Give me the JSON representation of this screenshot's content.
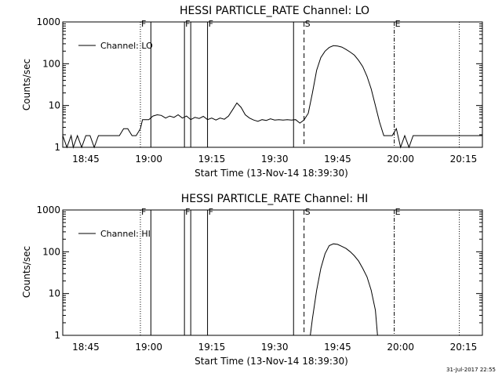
{
  "footer_stamp": "31-Jul-2017 22:55",
  "chart_data": [
    {
      "type": "line",
      "title": "HESSI PARTICLE_RATE Channel: LO",
      "xlabel": "Start Time (13-Nov-14 18:39:30)",
      "ylabel": "Counts/sec",
      "y_scale": "log",
      "ylim": [
        1,
        1000
      ],
      "xlim_minutes": [
        0,
        100
      ],
      "x_ticks": [
        "18:45",
        "19:00",
        "19:15",
        "19:30",
        "19:45",
        "20:00",
        "20:15"
      ],
      "y_ticks": [
        "1",
        "10",
        "100",
        "1000"
      ],
      "legend": {
        "entries": [
          "Channel: LO"
        ],
        "placement": "top-left"
      },
      "markers": [
        {
          "label": "F",
          "time": "18:58:00",
          "style": "dotted"
        },
        {
          "label": "",
          "time": "19:00:30",
          "style": "solid"
        },
        {
          "label": "F",
          "time": "19:08:30",
          "style": "solid"
        },
        {
          "label": "",
          "time": "19:10:00",
          "style": "solid"
        },
        {
          "label": "F",
          "time": "19:14:00",
          "style": "solid"
        },
        {
          "label": "",
          "time": "19:34:30",
          "style": "solid"
        },
        {
          "label": "S",
          "time": "19:37:00",
          "style": "dashed"
        },
        {
          "label": "E",
          "time": "19:58:30",
          "style": "dashdot"
        },
        {
          "label": "",
          "time": "20:14:00",
          "style": "dotted"
        }
      ],
      "series": [
        {
          "name": "Channel: LO",
          "points": [
            [
              "18:39:30",
              1.9
            ],
            [
              "18:40:30",
              1.0
            ],
            [
              "18:41:30",
              1.9
            ],
            [
              "18:42:00",
              1.0
            ],
            [
              "18:43:00",
              1.9
            ],
            [
              "18:44:00",
              1.0
            ],
            [
              "18:45:00",
              1.9
            ],
            [
              "18:46:00",
              1.9
            ],
            [
              "18:47:00",
              1.0
            ],
            [
              "18:48:00",
              1.9
            ],
            [
              "18:49:00",
              1.9
            ],
            [
              "18:50:00",
              1.9
            ],
            [
              "18:51:00",
              1.9
            ],
            [
              "18:52:00",
              1.9
            ],
            [
              "18:53:00",
              1.9
            ],
            [
              "18:54:00",
              2.8
            ],
            [
              "18:55:00",
              2.8
            ],
            [
              "18:56:00",
              1.9
            ],
            [
              "18:57:00",
              1.9
            ],
            [
              "18:58:00",
              2.8
            ],
            [
              "18:58:30",
              4.6
            ],
            [
              "19:00:00",
              4.6
            ],
            [
              "19:01:00",
              5.6
            ],
            [
              "19:02:00",
              6.0
            ],
            [
              "19:03:00",
              5.8
            ],
            [
              "19:04:00",
              5.0
            ],
            [
              "19:05:00",
              5.6
            ],
            [
              "19:06:00",
              5.2
            ],
            [
              "19:07:00",
              6.0
            ],
            [
              "19:08:00",
              5.0
            ],
            [
              "19:09:00",
              5.6
            ],
            [
              "19:10:00",
              4.6
            ],
            [
              "19:11:00",
              5.2
            ],
            [
              "19:12:00",
              4.9
            ],
            [
              "19:13:00",
              5.5
            ],
            [
              "19:14:00",
              4.6
            ],
            [
              "19:15:00",
              5.0
            ],
            [
              "19:16:00",
              4.5
            ],
            [
              "19:17:00",
              5.0
            ],
            [
              "19:18:00",
              4.7
            ],
            [
              "19:19:00",
              5.6
            ],
            [
              "19:20:00",
              8.0
            ],
            [
              "19:21:00",
              11.5
            ],
            [
              "19:22:00",
              9.0
            ],
            [
              "19:23:00",
              6.0
            ],
            [
              "19:24:00",
              5.0
            ],
            [
              "19:25:00",
              4.5
            ],
            [
              "19:26:00",
              4.2
            ],
            [
              "19:27:00",
              4.6
            ],
            [
              "19:28:00",
              4.4
            ],
            [
              "19:29:00",
              4.8
            ],
            [
              "19:30:00",
              4.5
            ],
            [
              "19:31:00",
              4.6
            ],
            [
              "19:32:00",
              4.5
            ],
            [
              "19:33:00",
              4.6
            ],
            [
              "19:34:00",
              4.5
            ],
            [
              "19:35:00",
              4.6
            ],
            [
              "19:36:00",
              3.8
            ],
            [
              "19:37:00",
              4.5
            ],
            [
              "19:38:00",
              6.5
            ],
            [
              "19:39:00",
              20.0
            ],
            [
              "19:40:00",
              70.0
            ],
            [
              "19:41:00",
              140.0
            ],
            [
              "19:42:00",
              200.0
            ],
            [
              "19:43:00",
              245.0
            ],
            [
              "19:44:00",
              270.0
            ],
            [
              "19:45:00",
              265.0
            ],
            [
              "19:46:00",
              250.0
            ],
            [
              "19:47:00",
              220.0
            ],
            [
              "19:48:00",
              190.0
            ],
            [
              "19:49:00",
              160.0
            ],
            [
              "19:50:00",
              120.0
            ],
            [
              "19:51:00",
              85.0
            ],
            [
              "19:52:00",
              50.0
            ],
            [
              "19:53:00",
              25.0
            ],
            [
              "19:54:00",
              10.0
            ],
            [
              "19:55:00",
              4.0
            ],
            [
              "19:56:00",
              1.9
            ],
            [
              "19:57:00",
              1.9
            ],
            [
              "19:58:00",
              1.9
            ],
            [
              "19:59:00",
              2.8
            ],
            [
              "20:00:00",
              1.0
            ],
            [
              "20:01:00",
              1.9
            ],
            [
              "20:02:00",
              1.0
            ],
            [
              "20:03:00",
              1.9
            ],
            [
              "20:04:00",
              1.9
            ],
            [
              "20:05:00",
              1.9
            ],
            [
              "20:06:00",
              1.9
            ],
            [
              "20:07:00",
              1.9
            ],
            [
              "20:08:00",
              1.9
            ],
            [
              "20:10:00",
              1.9
            ],
            [
              "20:12:00",
              1.9
            ],
            [
              "20:14:00",
              1.9
            ],
            [
              "20:16:00",
              1.9
            ],
            [
              "20:19:30",
              1.9
            ]
          ]
        }
      ]
    },
    {
      "type": "line",
      "title": "HESSI PARTICLE_RATE Channel: HI",
      "xlabel": "Start Time (13-Nov-14 18:39:30)",
      "ylabel": "Counts/sec",
      "y_scale": "log",
      "ylim": [
        1,
        1000
      ],
      "xlim_minutes": [
        0,
        100
      ],
      "x_ticks": [
        "18:45",
        "19:00",
        "19:15",
        "19:30",
        "19:45",
        "20:00",
        "20:15"
      ],
      "y_ticks": [
        "1",
        "10",
        "100",
        "1000"
      ],
      "legend": {
        "entries": [
          "Channel: HI"
        ],
        "placement": "top-left"
      },
      "markers": [
        {
          "label": "F",
          "time": "18:58:00",
          "style": "dotted"
        },
        {
          "label": "",
          "time": "19:00:30",
          "style": "solid"
        },
        {
          "label": "F",
          "time": "19:08:30",
          "style": "solid"
        },
        {
          "label": "",
          "time": "19:10:00",
          "style": "solid"
        },
        {
          "label": "F",
          "time": "19:14:00",
          "style": "solid"
        },
        {
          "label": "",
          "time": "19:34:30",
          "style": "solid"
        },
        {
          "label": "S",
          "time": "19:37:00",
          "style": "dashed"
        },
        {
          "label": "E",
          "time": "19:58:30",
          "style": "dashdot"
        },
        {
          "label": "",
          "time": "20:14:00",
          "style": "dotted"
        }
      ],
      "series": [
        {
          "name": "Channel: HI",
          "points": [
            [
              "19:38:30",
              1.0
            ],
            [
              "19:39:00",
              2.5
            ],
            [
              "19:40:00",
              12.0
            ],
            [
              "19:41:00",
              40.0
            ],
            [
              "19:42:00",
              90.0
            ],
            [
              "19:43:00",
              140.0
            ],
            [
              "19:44:00",
              155.0
            ],
            [
              "19:45:00",
              150.0
            ],
            [
              "19:46:00",
              135.0
            ],
            [
              "19:47:00",
              120.0
            ],
            [
              "19:48:00",
              100.0
            ],
            [
              "19:49:00",
              80.0
            ],
            [
              "19:50:00",
              60.0
            ],
            [
              "19:51:00",
              40.0
            ],
            [
              "19:52:00",
              25.0
            ],
            [
              "19:53:00",
              12.0
            ],
            [
              "19:54:00",
              4.0
            ],
            [
              "19:54:30",
              1.0
            ]
          ]
        }
      ]
    }
  ]
}
